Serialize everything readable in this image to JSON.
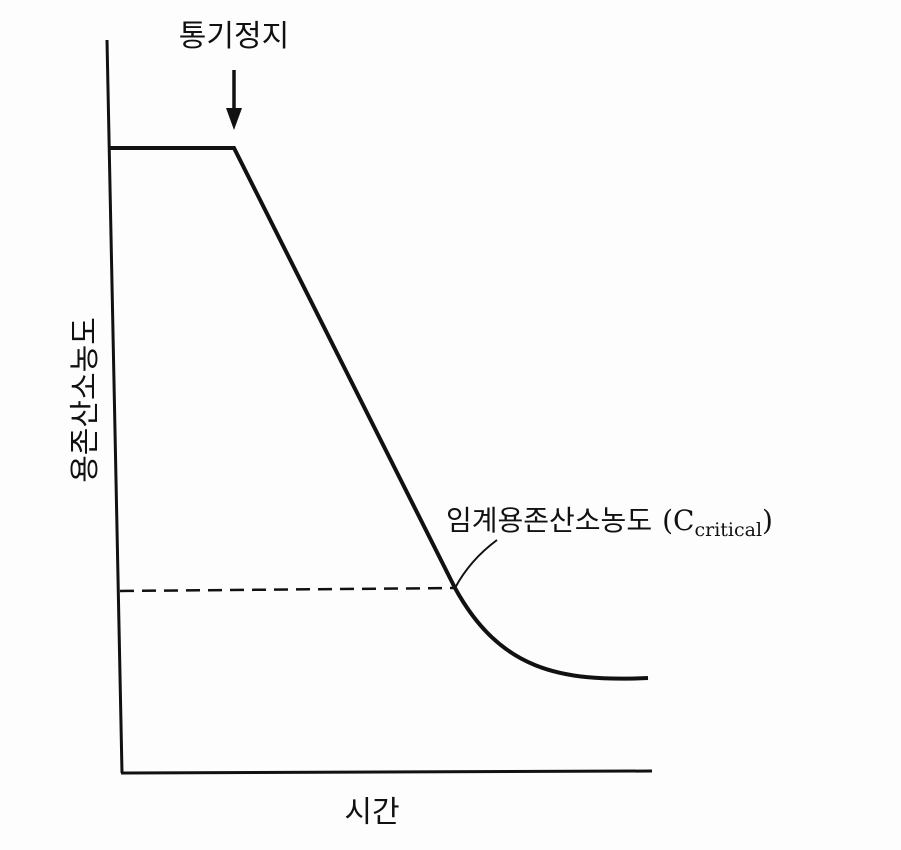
{
  "title_arrow_label": "통기정지",
  "y_axis_label": "용존산소농도",
  "x_axis_label": "시간",
  "critical_label": {
    "text": "임계용존산소농도",
    "open": "(",
    "symbol": "C",
    "subscript": "critical",
    "close": ")"
  }
}
